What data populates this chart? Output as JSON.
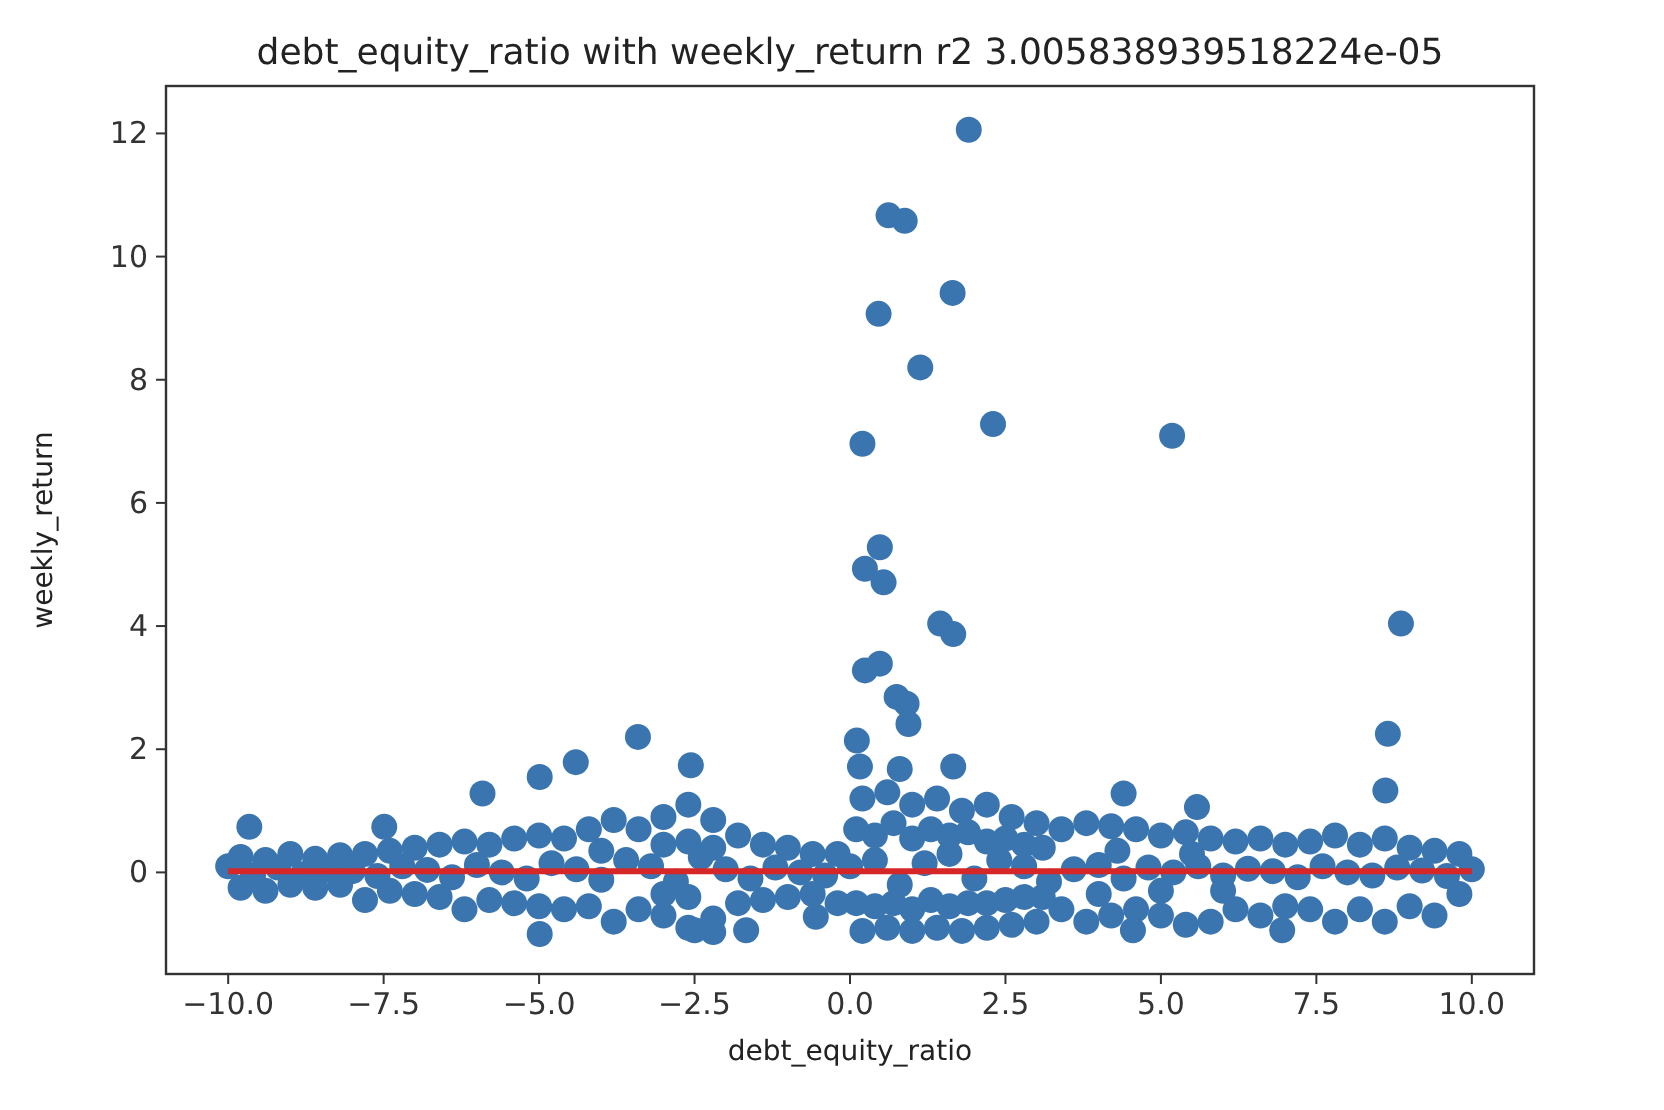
{
  "chart_data": {
    "type": "scatter",
    "title": "debt_equity_ratio with weekly_return r2 3.005838939518224e-05",
    "xlabel": "debt_equity_ratio",
    "ylabel": "weekly_return",
    "grid": false,
    "xlim": [
      -11,
      11
    ],
    "ylim": [
      -1.65,
      12.77
    ],
    "xticks": [
      {
        "value": -10,
        "label": "−10.0"
      },
      {
        "value": -7.5,
        "label": "−7.5"
      },
      {
        "value": -5,
        "label": "−5.0"
      },
      {
        "value": -2.5,
        "label": "−2.5"
      },
      {
        "value": 0,
        "label": "0.0"
      },
      {
        "value": 2.5,
        "label": "2.5"
      },
      {
        "value": 5,
        "label": "5.0"
      },
      {
        "value": 7.5,
        "label": "7.5"
      },
      {
        "value": 10,
        "label": "10.0"
      }
    ],
    "yticks": [
      0,
      2,
      4,
      6,
      8,
      10,
      12
    ],
    "series": [
      {
        "color": "#3a75b0",
        "marker": "circle",
        "x": [
          -10.0,
          -9.6,
          -9.2,
          -8.8,
          -8.4,
          -8.0,
          -7.6,
          -7.2,
          -6.8,
          -6.4,
          -6.0,
          -5.6,
          -5.2,
          -4.8,
          -4.4,
          -4.0,
          -3.6,
          -3.2,
          -2.8,
          -2.4,
          -2.0,
          -1.6,
          -1.2,
          -0.8,
          -0.4,
          0.0,
          0.4,
          0.8,
          1.2,
          1.6,
          2.0,
          2.4,
          2.8,
          3.2,
          3.6,
          4.0,
          4.4,
          4.8,
          5.2,
          5.6,
          6.0,
          6.4,
          6.8,
          7.2,
          7.6,
          8.0,
          8.4,
          8.8,
          9.2,
          9.6,
          10.0,
          -9.8,
          -9.4,
          -9.0,
          -8.6,
          -8.2,
          -7.8,
          -7.4,
          -7.0,
          -6.6,
          -6.2,
          -5.8,
          -5.4,
          -5.0,
          -4.6,
          -4.2,
          -3.8,
          -3.4,
          -3.0,
          -2.6,
          -2.2,
          -1.8,
          -1.4,
          -1.0,
          -0.6,
          -0.2,
          0.2,
          0.6,
          1.0,
          1.4,
          1.8,
          2.2,
          2.6,
          3.0,
          3.4,
          3.8,
          4.2,
          4.6,
          5.0,
          5.4,
          5.8,
          6.2,
          6.6,
          7.0,
          7.4,
          7.8,
          8.2,
          8.6,
          9.0,
          9.4,
          9.8,
          -9.8,
          -9.4,
          -9.0,
          -8.6,
          -8.2,
          -7.8,
          -7.4,
          -7.0,
          -6.6,
          -6.2,
          -5.8,
          -5.4,
          -5.0,
          -4.6,
          -4.2,
          -3.8,
          -3.4,
          -3.0,
          -2.6,
          -2.2,
          -1.8,
          -1.4,
          -1.0,
          -0.6,
          -0.2,
          0.2,
          0.6,
          1.0,
          1.4,
          1.8,
          2.2,
          2.6,
          3.0,
          3.4,
          3.8,
          4.2,
          4.6,
          5.0,
          5.4,
          5.8,
          6.2,
          6.6,
          7.0,
          7.4,
          7.8,
          8.2,
          8.6,
          9.0,
          9.4,
          9.8,
          0.1,
          0.4,
          0.7,
          1.0,
          1.3,
          1.6,
          1.9,
          2.2,
          2.5,
          2.8,
          3.1,
          -3.0,
          -2.6,
          -2.2,
          -4.0,
          4.3,
          5.5,
          0.1,
          0.4,
          0.7,
          1.0,
          1.3,
          1.6,
          1.9,
          2.2,
          2.5,
          2.8,
          3.1,
          -3.0,
          -2.6,
          4.0,
          5.0,
          6.0,
          1.91,
          0.62,
          0.88,
          0.46,
          1.65,
          1.13,
          0.2,
          2.3,
          5.18,
          0.48,
          0.24,
          0.54,
          1.45,
          1.66,
          8.86,
          0.24,
          0.48,
          0.75,
          0.91,
          0.94,
          0.11,
          8.65,
          8.61,
          0.16,
          0.8,
          1.66,
          4.4,
          5.58,
          -3.41,
          -4.41,
          -4.99,
          -5.91,
          -2.56,
          -9.66,
          -7.49,
          -4.99,
          -0.55,
          -1.67,
          -2.2,
          -2.5,
          6.95,
          4.55
        ],
        "values": [
          0.1,
          -0.05,
          0.08,
          -0.03,
          0.05,
          0.02,
          -0.06,
          0.1,
          0.04,
          -0.08,
          0.12,
          0.0,
          -0.1,
          0.15,
          0.05,
          -0.12,
          0.2,
          0.1,
          -0.15,
          0.25,
          0.05,
          -0.1,
          0.08,
          0.0,
          -0.05,
          0.1,
          0.2,
          -0.2,
          0.15,
          0.3,
          -0.1,
          0.2,
          0.1,
          -0.15,
          0.05,
          0.12,
          -0.1,
          0.08,
          0.0,
          0.1,
          -0.05,
          0.06,
          0.02,
          -0.08,
          0.1,
          0.0,
          -0.05,
          0.08,
          0.03,
          -0.06,
          0.05,
          0.25,
          0.2,
          0.3,
          0.22,
          0.28,
          0.3,
          0.35,
          0.4,
          0.45,
          0.5,
          0.45,
          0.55,
          0.6,
          0.55,
          0.7,
          0.85,
          0.7,
          0.9,
          1.1,
          0.85,
          0.6,
          0.45,
          0.4,
          0.3,
          0.3,
          1.2,
          1.3,
          1.1,
          1.2,
          1.0,
          1.1,
          0.9,
          0.8,
          0.7,
          0.8,
          0.75,
          0.7,
          0.6,
          0.65,
          0.55,
          0.5,
          0.55,
          0.45,
          0.5,
          0.6,
          0.45,
          0.55,
          0.4,
          0.35,
          0.3,
          -0.25,
          -0.3,
          -0.2,
          -0.25,
          -0.2,
          -0.45,
          -0.3,
          -0.35,
          -0.4,
          -0.6,
          -0.45,
          -0.5,
          -0.55,
          -0.6,
          -0.55,
          -0.8,
          -0.6,
          -0.7,
          -0.9,
          -0.75,
          -0.5,
          -0.45,
          -0.4,
          -0.35,
          -0.5,
          -0.95,
          -0.9,
          -0.95,
          -0.9,
          -0.95,
          -0.9,
          -0.85,
          -0.8,
          -0.6,
          -0.8,
          -0.7,
          -0.6,
          -0.7,
          -0.85,
          -0.8,
          -0.6,
          -0.7,
          -0.55,
          -0.6,
          -0.8,
          -0.6,
          -0.8,
          -0.55,
          -0.7,
          -0.35,
          0.7,
          0.6,
          0.8,
          0.55,
          0.7,
          0.6,
          0.65,
          0.5,
          0.55,
          0.45,
          0.4,
          0.45,
          0.5,
          0.4,
          0.35,
          0.35,
          0.3,
          -0.5,
          -0.55,
          -0.5,
          -0.6,
          -0.45,
          -0.55,
          -0.5,
          -0.5,
          -0.45,
          -0.4,
          -0.4,
          -0.35,
          -0.4,
          -0.35,
          -0.3,
          -0.3,
          12.06,
          10.67,
          10.58,
          9.07,
          9.41,
          8.2,
          6.96,
          7.28,
          7.09,
          5.28,
          4.93,
          4.71,
          4.04,
          3.87,
          4.04,
          3.28,
          3.39,
          2.85,
          2.74,
          2.41,
          2.14,
          2.25,
          1.33,
          1.72,
          1.68,
          1.72,
          1.28,
          1.06,
          2.2,
          1.79,
          1.55,
          1.28,
          1.74,
          0.74,
          0.74,
          -1.0,
          -0.72,
          -0.94,
          -0.97,
          -0.94,
          -0.94,
          -0.94
        ]
      },
      {
        "type": "line",
        "color": "#d62728",
        "x": [
          -10,
          10
        ],
        "values": [
          0.02,
          0.02
        ]
      }
    ]
  }
}
